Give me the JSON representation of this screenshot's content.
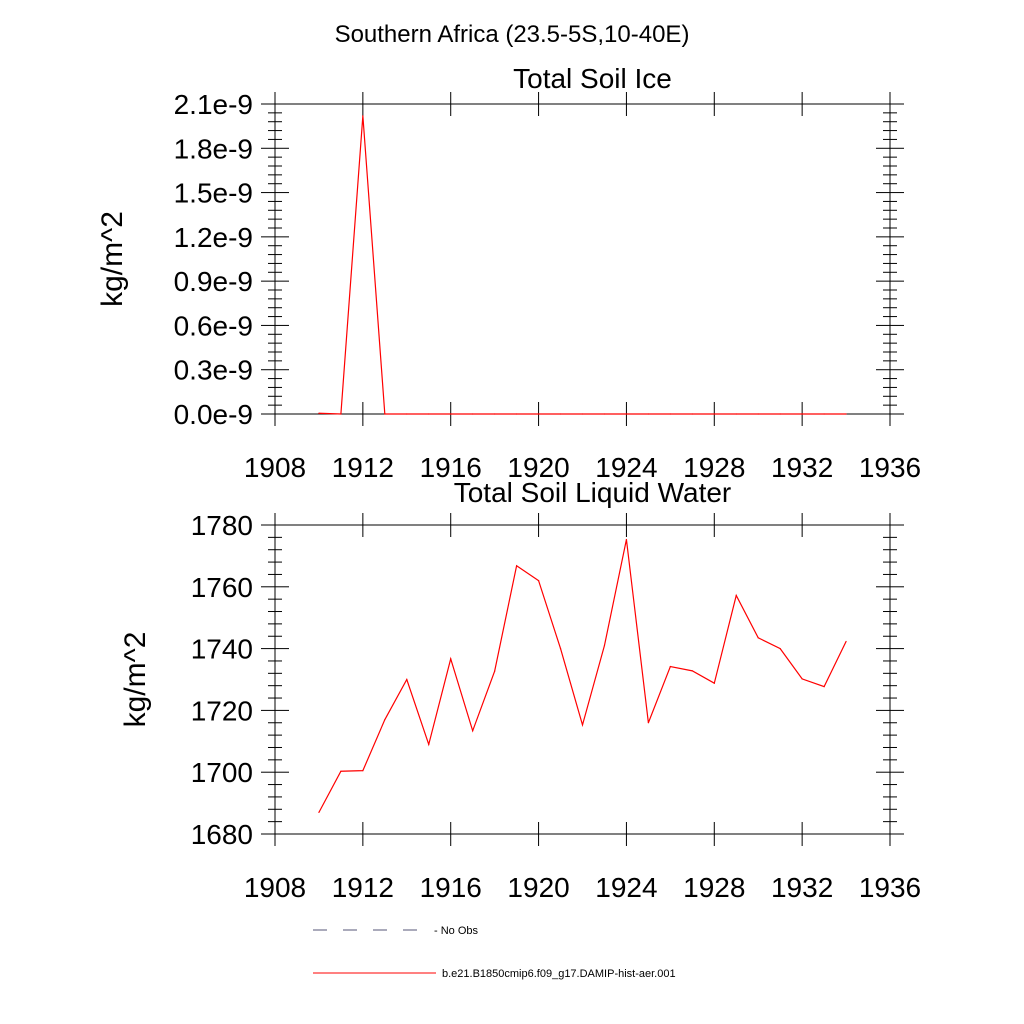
{
  "main_title": "Southern Africa (23.5-5S,10-40E)",
  "legend": [
    {
      "label": "No Obs",
      "style": "dashed",
      "color": "#555577"
    },
    {
      "label": "b.e21.B1850cmip6.f09_g17.DAMIP-hist-aer.001",
      "style": "solid",
      "color": "#ff0000"
    }
  ],
  "chart_data": [
    {
      "type": "line",
      "title": "Total Soil Ice",
      "ylabel": "kg/m^2",
      "xlabel": "",
      "xlim": [
        1908,
        1936
      ],
      "ylim": [
        0,
        2.1e-09
      ],
      "xticks": [
        1908,
        1912,
        1916,
        1920,
        1924,
        1928,
        1932,
        1936
      ],
      "xtick_labels": [
        "1908",
        "1912",
        "1916",
        "1920",
        "1924",
        "1928",
        "1932",
        "1936"
      ],
      "yticks": [
        0,
        3e-10,
        6e-10,
        9e-10,
        1.2e-09,
        1.5e-09,
        1.8e-09,
        2.1e-09
      ],
      "ytick_labels": [
        "0.0e-9",
        "0.3e-9",
        "0.6e-9",
        "0.9e-9",
        "1.2e-9",
        "1.5e-9",
        "1.8e-9",
        "2.1e-9"
      ],
      "grid": false,
      "series": [
        {
          "name": "b.e21.B1850cmip6.f09_g17.DAMIP-hist-aer.001",
          "color": "#ff0000",
          "x": [
            1910,
            1911,
            1912,
            1913,
            1914,
            1915,
            1916,
            1917,
            1918,
            1919,
            1920,
            1921,
            1922,
            1923,
            1924,
            1925,
            1926,
            1927,
            1928,
            1929,
            1930,
            1931,
            1932,
            1933,
            1934
          ],
          "y": [
            5e-12,
            0,
            2.02e-09,
            0,
            0,
            0,
            0,
            0,
            0,
            0,
            0,
            0,
            0,
            0,
            0,
            0,
            0,
            0,
            0,
            0,
            0,
            0,
            0,
            0,
            0
          ]
        }
      ]
    },
    {
      "type": "line",
      "title": "Total Soil Liquid Water",
      "ylabel": "kg/m^2",
      "xlabel": "",
      "xlim": [
        1908,
        1936
      ],
      "ylim": [
        1680,
        1780
      ],
      "xticks": [
        1908,
        1912,
        1916,
        1920,
        1924,
        1928,
        1932,
        1936
      ],
      "xtick_labels": [
        "1908",
        "1912",
        "1916",
        "1920",
        "1924",
        "1928",
        "1932",
        "1936"
      ],
      "yticks": [
        1680,
        1700,
        1720,
        1740,
        1760,
        1780
      ],
      "ytick_labels": [
        "1680",
        "1700",
        "1720",
        "1740",
        "1760",
        "1780"
      ],
      "grid": false,
      "series": [
        {
          "name": "b.e21.B1850cmip6.f09_g17.DAMIP-hist-aer.001",
          "color": "#ff0000",
          "x": [
            1910,
            1911,
            1912,
            1913,
            1914,
            1915,
            1916,
            1917,
            1918,
            1919,
            1920,
            1921,
            1922,
            1923,
            1924,
            1925,
            1926,
            1927,
            1928,
            1929,
            1930,
            1931,
            1932,
            1933,
            1934
          ],
          "y": [
            1687,
            1700.3,
            1700.5,
            1717,
            1730,
            1709,
            1736.7,
            1713.4,
            1732.7,
            1766.8,
            1762,
            1740,
            1715.3,
            1741,
            1775.3,
            1716,
            1734.2,
            1732.8,
            1728.8,
            1757.2,
            1743.5,
            1740,
            1730.2,
            1727.7,
            1742.3
          ]
        }
      ]
    }
  ]
}
